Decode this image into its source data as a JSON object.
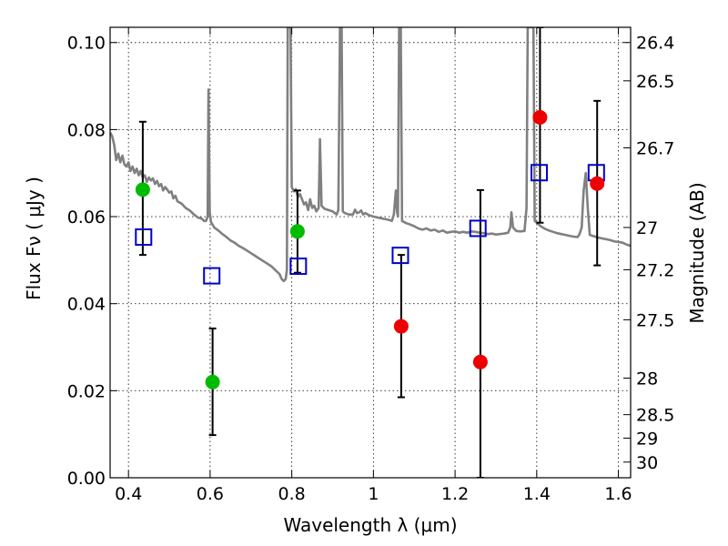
{
  "chart_data": {
    "type": "scatter",
    "title": "",
    "xlabel": "Wavelength  λ (μm)",
    "ylabel": "Flux  Fν  ( μJy )",
    "ylabel_right": "Magnitude (AB)",
    "xlim": [
      0.355,
      1.63
    ],
    "ylim": [
      0.0,
      0.1035
    ],
    "grid": true,
    "x_ticks": [
      0.4,
      0.6,
      0.8,
      1.0,
      1.2,
      1.4,
      1.6
    ],
    "x_tick_labels": [
      "0.4",
      "0.6",
      "0.8",
      "1",
      "1.2",
      "1.4",
      "1.6"
    ],
    "y_ticks": [
      0.0,
      0.02,
      0.04,
      0.06,
      0.08,
      0.1
    ],
    "y_tick_labels": [
      "0.00",
      "0.02",
      "0.04",
      "0.06",
      "0.08",
      "0.10"
    ],
    "right_axis_ticks": [
      {
        "flux": 0.1,
        "label": "26.4"
      },
      {
        "flux": 0.0912,
        "label": "26.5"
      },
      {
        "flux": 0.0758,
        "label": "26.7"
      },
      {
        "flux": 0.0575,
        "label": "27"
      },
      {
        "flux": 0.0478,
        "label": "27.2"
      },
      {
        "flux": 0.0363,
        "label": "27.5"
      },
      {
        "flux": 0.0229,
        "label": "28"
      },
      {
        "flux": 0.0145,
        "label": "28.5"
      },
      {
        "flux": 0.0091,
        "label": "29"
      },
      {
        "flux": 0.0036,
        "label": "30"
      }
    ],
    "series": [
      {
        "marker": "circle",
        "color": "#00bb00",
        "points": [
          {
            "x": 0.435,
            "y": 0.0662,
            "yerr_low": 0.0512,
            "yerr_high": 0.0818
          },
          {
            "x": 0.606,
            "y": 0.022,
            "yerr_low": 0.0098,
            "yerr_high": 0.0343
          },
          {
            "x": 0.814,
            "y": 0.0566,
            "yerr_low": 0.0471,
            "yerr_high": 0.066
          }
        ]
      },
      {
        "marker": "circle",
        "color": "#ee0000",
        "points": [
          {
            "x": 1.068,
            "y": 0.0348,
            "yerr_low": 0.0185,
            "yerr_high": 0.0512
          },
          {
            "x": 1.262,
            "y": 0.0266,
            "yerr_low": 0.0,
            "yerr_high": 0.0661
          },
          {
            "x": 1.408,
            "y": 0.0828,
            "yerr_low": 0.0586,
            "yerr_high": 0.1035
          },
          {
            "x": 1.548,
            "y": 0.0676,
            "yerr_low": 0.0488,
            "yerr_high": 0.0866
          }
        ]
      },
      {
        "marker": "open-square",
        "color": "#0000cc",
        "points": [
          {
            "x": 0.437,
            "y": 0.0553
          },
          {
            "x": 0.604,
            "y": 0.0464
          },
          {
            "x": 0.816,
            "y": 0.0486
          },
          {
            "x": 1.066,
            "y": 0.0511
          },
          {
            "x": 1.256,
            "y": 0.0573
          },
          {
            "x": 1.406,
            "y": 0.0701
          },
          {
            "x": 1.546,
            "y": 0.0701
          }
        ]
      },
      {
        "marker": "line",
        "color": "#808080",
        "points": [
          [
            0.355,
            0.0793
          ],
          [
            0.36,
            0.0785
          ],
          [
            0.365,
            0.0765
          ],
          [
            0.37,
            0.073
          ],
          [
            0.375,
            0.0745
          ],
          [
            0.38,
            0.0725
          ],
          [
            0.385,
            0.074
          ],
          [
            0.39,
            0.072
          ],
          [
            0.395,
            0.0715
          ],
          [
            0.4,
            0.0725
          ],
          [
            0.405,
            0.0705
          ],
          [
            0.41,
            0.0715
          ],
          [
            0.415,
            0.07
          ],
          [
            0.42,
            0.071
          ],
          [
            0.425,
            0.0695
          ],
          [
            0.43,
            0.0705
          ],
          [
            0.435,
            0.069
          ],
          [
            0.44,
            0.0695
          ],
          [
            0.445,
            0.068
          ],
          [
            0.45,
            0.069
          ],
          [
            0.455,
            0.0683
          ],
          [
            0.46,
            0.0688
          ],
          [
            0.465,
            0.0675
          ],
          [
            0.47,
            0.0682
          ],
          [
            0.475,
            0.067
          ],
          [
            0.48,
            0.0675
          ],
          [
            0.485,
            0.066
          ],
          [
            0.49,
            0.0668
          ],
          [
            0.5,
            0.0655
          ],
          [
            0.505,
            0.0658
          ],
          [
            0.51,
            0.0642
          ],
          [
            0.515,
            0.0648
          ],
          [
            0.52,
            0.0635
          ],
          [
            0.53,
            0.063
          ],
          [
            0.54,
            0.062
          ],
          [
            0.55,
            0.0614
          ],
          [
            0.555,
            0.061
          ],
          [
            0.56,
            0.0605
          ],
          [
            0.57,
            0.0598
          ],
          [
            0.58,
            0.0595
          ],
          [
            0.585,
            0.059
          ],
          [
            0.59,
            0.059
          ],
          [
            0.594,
            0.06
          ],
          [
            0.596,
            0.0892
          ],
          [
            0.599,
            0.061
          ],
          [
            0.602,
            0.0588
          ],
          [
            0.61,
            0.0575
          ],
          [
            0.62,
            0.0568
          ],
          [
            0.63,
            0.056
          ],
          [
            0.64,
            0.0553
          ],
          [
            0.65,
            0.0545
          ],
          [
            0.66,
            0.054
          ],
          [
            0.67,
            0.0533
          ],
          [
            0.68,
            0.0528
          ],
          [
            0.69,
            0.0522
          ],
          [
            0.7,
            0.0516
          ],
          [
            0.71,
            0.051
          ],
          [
            0.72,
            0.0504
          ],
          [
            0.73,
            0.0498
          ],
          [
            0.74,
            0.0492
          ],
          [
            0.75,
            0.0486
          ],
          [
            0.76,
            0.0477
          ],
          [
            0.77,
            0.0468
          ],
          [
            0.775,
            0.0457
          ],
          [
            0.78,
            0.0452
          ],
          [
            0.785,
            0.0456
          ],
          [
            0.788,
            0.0478
          ],
          [
            0.79,
            0.1035
          ],
          [
            0.797,
            0.1035
          ],
          [
            0.8,
            0.0668
          ],
          [
            0.805,
            0.0658
          ],
          [
            0.81,
            0.0663
          ],
          [
            0.815,
            0.0645
          ],
          [
            0.82,
            0.0652
          ],
          [
            0.825,
            0.064
          ],
          [
            0.83,
            0.0628
          ],
          [
            0.835,
            0.0633
          ],
          [
            0.84,
            0.0615
          ],
          [
            0.845,
            0.064
          ],
          [
            0.85,
            0.062
          ],
          [
            0.855,
            0.0625
          ],
          [
            0.86,
            0.0612
          ],
          [
            0.866,
            0.062
          ],
          [
            0.869,
            0.0778
          ],
          [
            0.873,
            0.0625
          ],
          [
            0.88,
            0.0618
          ],
          [
            0.89,
            0.0615
          ],
          [
            0.9,
            0.0612
          ],
          [
            0.91,
            0.0605
          ],
          [
            0.914,
            0.0615
          ],
          [
            0.918,
            0.1035
          ],
          [
            0.922,
            0.1035
          ],
          [
            0.925,
            0.0612
          ],
          [
            0.93,
            0.0608
          ],
          [
            0.94,
            0.0605
          ],
          [
            0.95,
            0.0605
          ],
          [
            0.955,
            0.0616
          ],
          [
            0.96,
            0.0608
          ],
          [
            0.965,
            0.061
          ],
          [
            0.97,
            0.0614
          ],
          [
            0.975,
            0.0605
          ],
          [
            0.98,
            0.0608
          ],
          [
            0.99,
            0.0603
          ],
          [
            1.0,
            0.06
          ],
          [
            1.01,
            0.0598
          ],
          [
            1.02,
            0.0596
          ],
          [
            1.03,
            0.0594
          ],
          [
            1.04,
            0.0592
          ],
          [
            1.045,
            0.059
          ],
          [
            1.05,
            0.0605
          ],
          [
            1.055,
            0.066
          ],
          [
            1.058,
            0.061
          ],
          [
            1.06,
            0.06
          ],
          [
            1.063,
            0.1035
          ],
          [
            1.067,
            0.1035
          ],
          [
            1.07,
            0.059
          ],
          [
            1.08,
            0.0585
          ],
          [
            1.09,
            0.0582
          ],
          [
            1.1,
            0.0578
          ],
          [
            1.11,
            0.0573
          ],
          [
            1.12,
            0.057
          ],
          [
            1.13,
            0.0573
          ],
          [
            1.14,
            0.0568
          ],
          [
            1.15,
            0.057
          ],
          [
            1.16,
            0.0565
          ],
          [
            1.17,
            0.0568
          ],
          [
            1.18,
            0.0563
          ],
          [
            1.19,
            0.0565
          ],
          [
            1.2,
            0.0566
          ],
          [
            1.21,
            0.0563
          ],
          [
            1.22,
            0.0565
          ],
          [
            1.23,
            0.0563
          ],
          [
            1.24,
            0.0566
          ],
          [
            1.25,
            0.0565
          ],
          [
            1.26,
            0.0563
          ],
          [
            1.27,
            0.0562
          ],
          [
            1.28,
            0.056
          ],
          [
            1.29,
            0.0561
          ],
          [
            1.3,
            0.0559
          ],
          [
            1.31,
            0.056
          ],
          [
            1.32,
            0.0561
          ],
          [
            1.33,
            0.0563
          ],
          [
            1.335,
            0.0575
          ],
          [
            1.338,
            0.061
          ],
          [
            1.342,
            0.0575
          ],
          [
            1.35,
            0.0567
          ],
          [
            1.36,
            0.0566
          ],
          [
            1.37,
            0.0567
          ],
          [
            1.375,
            0.062
          ],
          [
            1.378,
            0.1035
          ],
          [
            1.392,
            0.1035
          ],
          [
            1.395,
            0.059
          ],
          [
            1.41,
            0.0578
          ],
          [
            1.42,
            0.0572
          ],
          [
            1.43,
            0.0568
          ],
          [
            1.44,
            0.0565
          ],
          [
            1.45,
            0.0562
          ],
          [
            1.46,
            0.056
          ],
          [
            1.47,
            0.0558
          ],
          [
            1.48,
            0.0556
          ],
          [
            1.49,
            0.0554
          ],
          [
            1.5,
            0.0553
          ],
          [
            1.505,
            0.056
          ],
          [
            1.51,
            0.0575
          ],
          [
            1.515,
            0.066
          ],
          [
            1.52,
            0.07
          ],
          [
            1.525,
            0.062
          ],
          [
            1.53,
            0.0558
          ],
          [
            1.54,
            0.0555
          ],
          [
            1.55,
            0.0552
          ],
          [
            1.56,
            0.055
          ],
          [
            1.57,
            0.0548
          ],
          [
            1.58,
            0.0546
          ],
          [
            1.59,
            0.0543
          ],
          [
            1.6,
            0.0542
          ],
          [
            1.61,
            0.054
          ],
          [
            1.62,
            0.0536
          ],
          [
            1.63,
            0.0533
          ]
        ]
      }
    ]
  }
}
